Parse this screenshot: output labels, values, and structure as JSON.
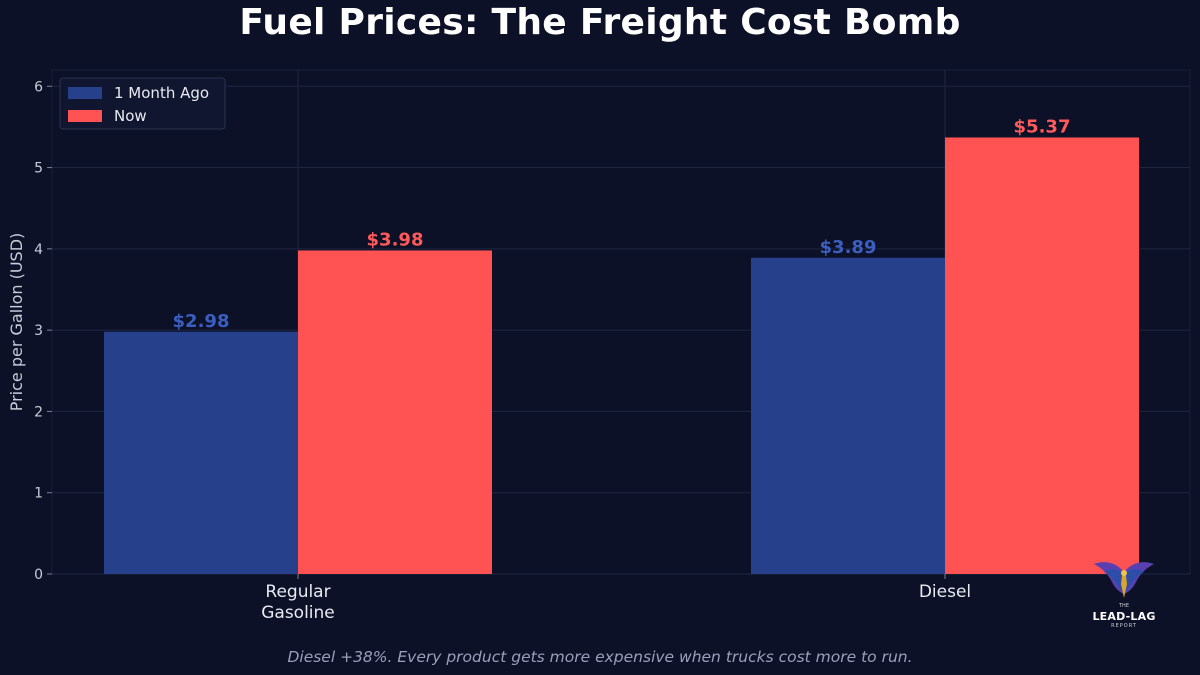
{
  "chart_data": {
    "type": "bar",
    "title": "Fuel Prices: The Freight Cost Bomb",
    "xlabel": "",
    "ylabel": "Price per Gallon (USD)",
    "categories": [
      "Regular\nGasoline",
      "Diesel"
    ],
    "series": [
      {
        "name": "1 Month Ago",
        "values": [
          2.98,
          3.89
        ],
        "labels": [
          "$2.98",
          "$3.89"
        ],
        "color": "#27408b"
      },
      {
        "name": "Now",
        "values": [
          3.98,
          5.37
        ],
        "labels": [
          "$3.98",
          "$5.37"
        ],
        "color": "#ff5252"
      }
    ],
    "ylim": [
      0,
      6.2
    ],
    "yticks": [
      0,
      1,
      2,
      3,
      4,
      5,
      6
    ],
    "grid": true,
    "legend_position": "top-left",
    "label_colors": {
      "1 Month Ago": "#3b5fc0",
      "Now": "#ff5a5a"
    }
  },
  "caption": "Diesel +38%. Every product gets more expensive when trucks cost more to run.",
  "logo": {
    "the": "THE",
    "name": "LEAD-LAG",
    "sub": "REPORT"
  },
  "colors": {
    "background": "#0c1128",
    "grid": "#1f2640",
    "axis_text": "#c8ccd8"
  }
}
